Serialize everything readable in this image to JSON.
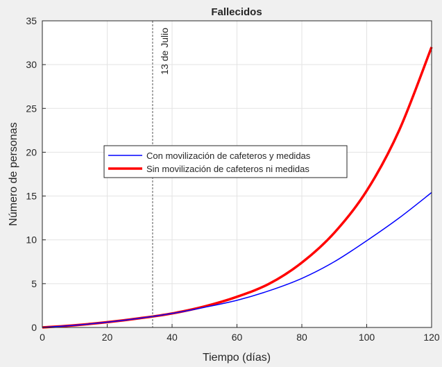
{
  "chart_data": {
    "type": "line",
    "title": "Fallecidos",
    "xlabel": "Tiempo (días)",
    "ylabel": "Número de personas",
    "xlim": [
      0,
      120
    ],
    "ylim": [
      0,
      35
    ],
    "xticks": [
      0,
      20,
      40,
      60,
      80,
      100,
      120
    ],
    "yticks": [
      0,
      5,
      10,
      15,
      20,
      25,
      30,
      35
    ],
    "grid": true,
    "legend_position": "center-left",
    "annotation": {
      "text": "13 de Julio",
      "x": 34
    },
    "series": [
      {
        "name": "Con movilización de cafeteros y medidas",
        "color": "#0000ff",
        "x": [
          0,
          10,
          20,
          30,
          40,
          50,
          60,
          70,
          80,
          90,
          100,
          110,
          120
        ],
        "values": [
          0.0,
          0.25,
          0.6,
          1.05,
          1.6,
          2.3,
          3.1,
          4.2,
          5.6,
          7.5,
          9.9,
          12.5,
          15.4
        ]
      },
      {
        "name": "Sin movilización de cafeteros ni medidas",
        "color": "#ff0000",
        "x": [
          0,
          10,
          20,
          30,
          40,
          50,
          60,
          70,
          80,
          90,
          100,
          110,
          120
        ],
        "values": [
          0.0,
          0.25,
          0.6,
          1.05,
          1.6,
          2.4,
          3.5,
          5.0,
          7.4,
          10.8,
          15.6,
          22.5,
          32.0
        ]
      }
    ]
  }
}
